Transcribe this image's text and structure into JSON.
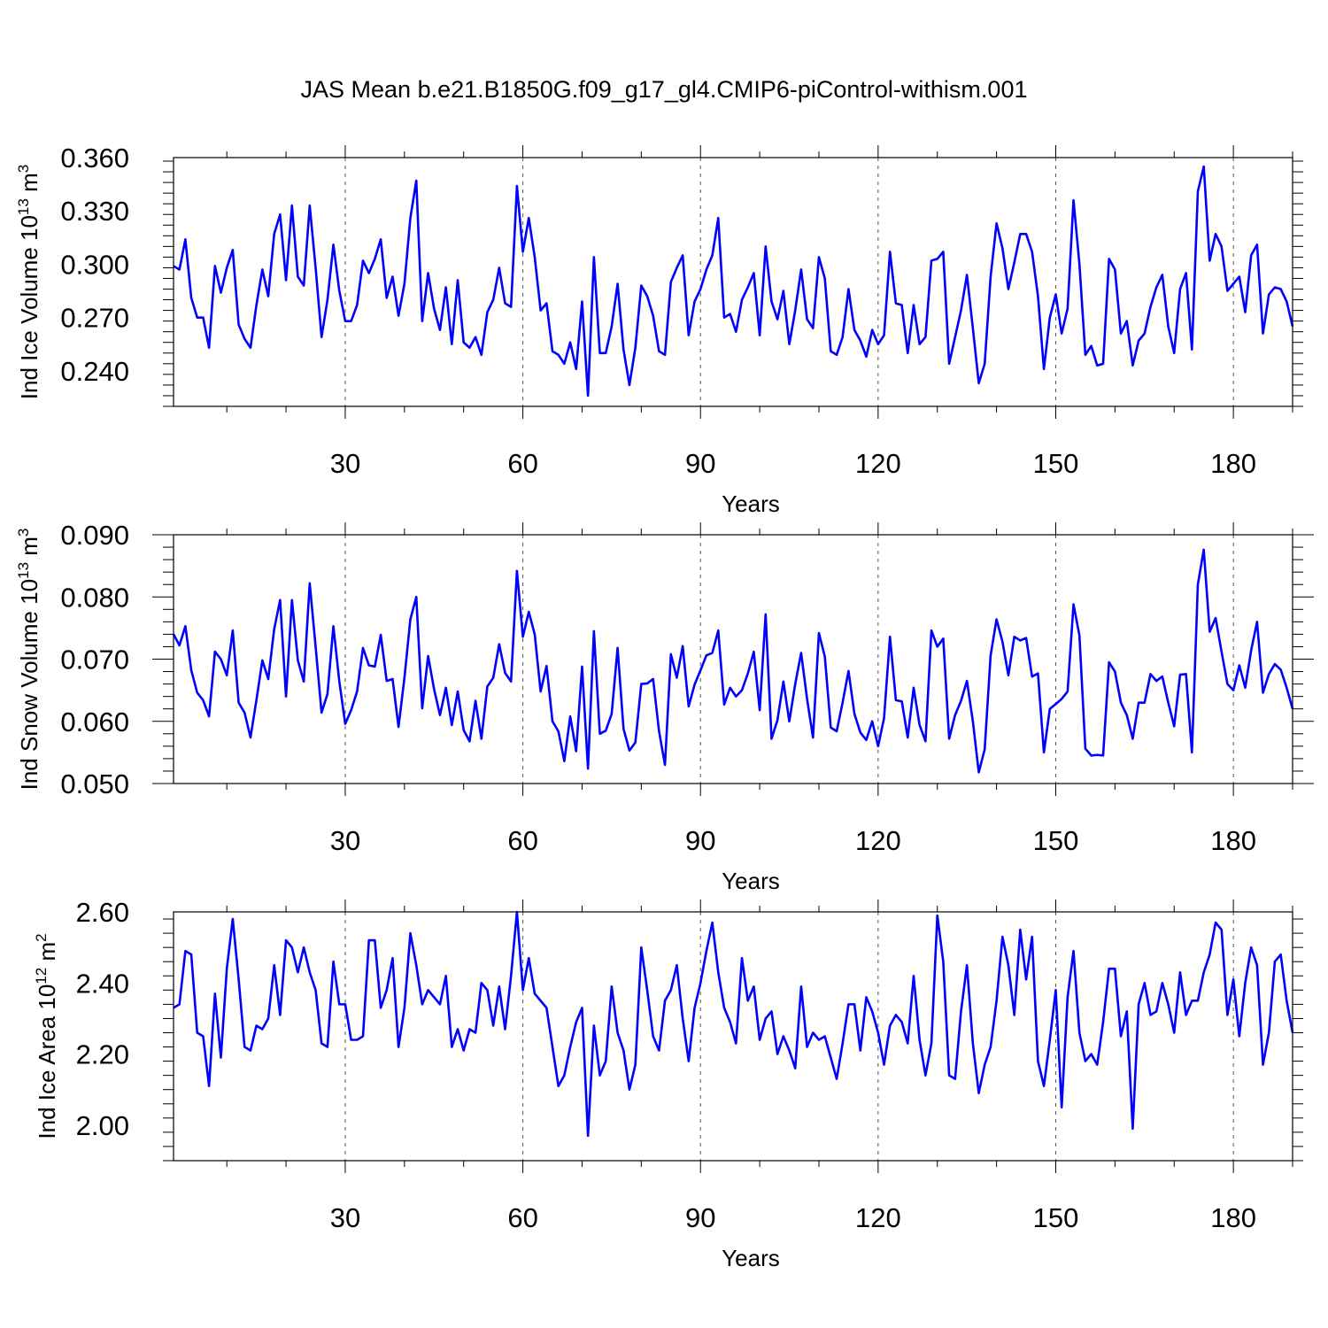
{
  "title": "JAS Mean b.e21.B1850G.f09_g17_gl4.CMIP6-piControl-withism.001",
  "colors": {
    "line": "#0000ff",
    "axis": "#000000",
    "grid": "#555555"
  },
  "chart_data": [
    {
      "type": "line",
      "ylabel": "Ind Ice Volume 10^13 m^3",
      "ylabel_main": "Ind Ice Volume 10",
      "ylabel_exp1": "13",
      "ylabel_unit": " m",
      "ylabel_exp2": "3",
      "xlabel": "Years",
      "xlim": [
        1,
        190
      ],
      "ylim": [
        0.22,
        0.36
      ],
      "xticks": [
        30,
        60,
        90,
        120,
        150,
        180
      ],
      "yticks": [
        0.24,
        0.27,
        0.3,
        0.33,
        0.36
      ],
      "ytick_labels": [
        "0.240",
        "0.270",
        "0.300",
        "0.330",
        "0.360"
      ],
      "grid": "vertical dashed at x ticks",
      "x_start": 1,
      "values": [
        0.299,
        0.297,
        0.314,
        0.281,
        0.27,
        0.27,
        0.253,
        0.299,
        0.284,
        0.298,
        0.308,
        0.266,
        0.258,
        0.253,
        0.277,
        0.297,
        0.282,
        0.317,
        0.328,
        0.291,
        0.333,
        0.293,
        0.288,
        0.333,
        0.298,
        0.259,
        0.28,
        0.311,
        0.285,
        0.268,
        0.268,
        0.277,
        0.302,
        0.295,
        0.303,
        0.314,
        0.281,
        0.293,
        0.271,
        0.289,
        0.326,
        0.347,
        0.268,
        0.295,
        0.275,
        0.263,
        0.287,
        0.255,
        0.291,
        0.256,
        0.253,
        0.259,
        0.249,
        0.273,
        0.28,
        0.298,
        0.278,
        0.276,
        0.344,
        0.307,
        0.326,
        0.304,
        0.274,
        0.278,
        0.251,
        0.249,
        0.244,
        0.256,
        0.241,
        0.279,
        0.226,
        0.304,
        0.25,
        0.25,
        0.265,
        0.289,
        0.252,
        0.232,
        0.253,
        0.288,
        0.282,
        0.271,
        0.251,
        0.249,
        0.29,
        0.298,
        0.305,
        0.26,
        0.279,
        0.286,
        0.297,
        0.305,
        0.326,
        0.27,
        0.272,
        0.262,
        0.28,
        0.287,
        0.295,
        0.26,
        0.31,
        0.279,
        0.269,
        0.285,
        0.255,
        0.274,
        0.297,
        0.269,
        0.264,
        0.304,
        0.292,
        0.251,
        0.249,
        0.259,
        0.286,
        0.263,
        0.257,
        0.248,
        0.263,
        0.255,
        0.26,
        0.307,
        0.278,
        0.277,
        0.25,
        0.277,
        0.255,
        0.259,
        0.302,
        0.303,
        0.307,
        0.244,
        0.259,
        0.274,
        0.294,
        0.264,
        0.233,
        0.244,
        0.293,
        0.323,
        0.309,
        0.286,
        0.301,
        0.317,
        0.317,
        0.307,
        0.282,
        0.241,
        0.27,
        0.283,
        0.261,
        0.275,
        0.336,
        0.3,
        0.249,
        0.254,
        0.243,
        0.244,
        0.303,
        0.297,
        0.261,
        0.268,
        0.243,
        0.257,
        0.261,
        0.276,
        0.287,
        0.294,
        0.265,
        0.25,
        0.286,
        0.295,
        0.252,
        0.341,
        0.355,
        0.302,
        0.317,
        0.31,
        0.285,
        0.289,
        0.293,
        0.273,
        0.305,
        0.311,
        0.261,
        0.283,
        0.287,
        0.286,
        0.279,
        0.265
      ]
    },
    {
      "type": "line",
      "ylabel": "Ind Snow Volume 10^13 m^3",
      "ylabel_main": "Ind Snow Volume 10",
      "ylabel_exp1": "13",
      "ylabel_unit": " m",
      "ylabel_exp2": "3",
      "xlabel": "Years",
      "xlim": [
        1,
        190
      ],
      "ylim": [
        0.05,
        0.09
      ],
      "xticks": [
        30,
        60,
        90,
        120,
        150,
        180
      ],
      "yticks": [
        0.05,
        0.06,
        0.07,
        0.08,
        0.09
      ],
      "ytick_labels": [
        "0.050",
        "0.060",
        "0.070",
        "0.080",
        "0.090"
      ],
      "grid": "vertical dashed at x ticks",
      "x_start": 1,
      "values": [
        0.074,
        0.0722,
        0.0753,
        0.0682,
        0.0646,
        0.0634,
        0.0608,
        0.0712,
        0.07,
        0.0674,
        0.0746,
        0.063,
        0.0614,
        0.0574,
        0.0634,
        0.0698,
        0.0668,
        0.0748,
        0.0795,
        0.064,
        0.0795,
        0.0698,
        0.0664,
        0.0822,
        0.072,
        0.0614,
        0.0644,
        0.0753,
        0.0664,
        0.0596,
        0.0618,
        0.0648,
        0.0718,
        0.069,
        0.0688,
        0.0739,
        0.0665,
        0.0668,
        0.0591,
        0.067,
        0.0764,
        0.08,
        0.0621,
        0.0705,
        0.0652,
        0.061,
        0.0654,
        0.0594,
        0.0648,
        0.0586,
        0.0568,
        0.0633,
        0.0572,
        0.0656,
        0.067,
        0.0724,
        0.0678,
        0.0664,
        0.0842,
        0.0736,
        0.0776,
        0.074,
        0.0648,
        0.0689,
        0.06,
        0.0584,
        0.0536,
        0.0608,
        0.0552,
        0.0688,
        0.0524,
        0.0745,
        0.058,
        0.0585,
        0.0612,
        0.0718,
        0.0588,
        0.0553,
        0.0566,
        0.066,
        0.0661,
        0.0668,
        0.0584,
        0.053,
        0.0708,
        0.067,
        0.0721,
        0.0624,
        0.0659,
        0.0682,
        0.0706,
        0.071,
        0.0746,
        0.0627,
        0.0654,
        0.064,
        0.065,
        0.0677,
        0.0712,
        0.0618,
        0.0772,
        0.0572,
        0.0602,
        0.0664,
        0.06,
        0.066,
        0.071,
        0.0636,
        0.0574,
        0.0742,
        0.0704,
        0.059,
        0.0584,
        0.063,
        0.0681,
        0.0612,
        0.0582,
        0.057,
        0.06,
        0.056,
        0.0605,
        0.0736,
        0.0634,
        0.0632,
        0.0574,
        0.0654,
        0.0594,
        0.0568,
        0.0746,
        0.072,
        0.0733,
        0.0572,
        0.061,
        0.0633,
        0.0665,
        0.06,
        0.0518,
        0.0555,
        0.0706,
        0.0764,
        0.0728,
        0.0674,
        0.0736,
        0.073,
        0.0734,
        0.0672,
        0.0677,
        0.055,
        0.062,
        0.0628,
        0.0636,
        0.0648,
        0.0788,
        0.0738,
        0.0556,
        0.0545,
        0.0546,
        0.0545,
        0.0695,
        0.068,
        0.063,
        0.061,
        0.0572,
        0.063,
        0.063,
        0.0676,
        0.0665,
        0.0672,
        0.063,
        0.0592,
        0.0675,
        0.0676,
        0.055,
        0.082,
        0.0876,
        0.0744,
        0.0766,
        0.0712,
        0.066,
        0.065,
        0.069,
        0.0654,
        0.0714,
        0.076,
        0.0646,
        0.0676,
        0.0692,
        0.0683,
        0.0654,
        0.062
      ]
    },
    {
      "type": "line",
      "ylabel": "Ind Ice Area 10^12 m^2",
      "ylabel_main": "Ind Ice Area 10",
      "ylabel_exp1": "12",
      "ylabel_unit": " m",
      "ylabel_exp2": "2",
      "xlabel": "Years",
      "xlim": [
        1,
        190
      ],
      "ylim": [
        1.9,
        2.6
      ],
      "xticks": [
        30,
        60,
        90,
        120,
        150,
        180
      ],
      "yticks": [
        2.0,
        2.2,
        2.4,
        2.6
      ],
      "ytick_labels": [
        "2.00",
        "2.20",
        "2.40",
        "2.60"
      ],
      "grid": "vertical dashed at x ticks",
      "x_start": 1,
      "values": [
        2.33,
        2.34,
        2.49,
        2.48,
        2.26,
        2.25,
        2.11,
        2.37,
        2.19,
        2.44,
        2.58,
        2.41,
        2.22,
        2.21,
        2.28,
        2.27,
        2.3,
        2.45,
        2.31,
        2.52,
        2.5,
        2.43,
        2.5,
        2.43,
        2.38,
        2.23,
        2.22,
        2.46,
        2.34,
        2.34,
        2.24,
        2.24,
        2.25,
        2.52,
        2.52,
        2.33,
        2.38,
        2.47,
        2.22,
        2.33,
        2.54,
        2.45,
        2.34,
        2.38,
        2.36,
        2.34,
        2.42,
        2.22,
        2.27,
        2.21,
        2.27,
        2.26,
        2.4,
        2.38,
        2.28,
        2.39,
        2.27,
        2.42,
        2.6,
        2.38,
        2.47,
        2.37,
        2.35,
        2.33,
        2.22,
        2.11,
        2.14,
        2.22,
        2.29,
        2.33,
        1.97,
        2.28,
        2.14,
        2.18,
        2.39,
        2.26,
        2.21,
        2.1,
        2.17,
        2.5,
        2.38,
        2.25,
        2.21,
        2.35,
        2.38,
        2.45,
        2.3,
        2.18,
        2.33,
        2.4,
        2.49,
        2.57,
        2.43,
        2.33,
        2.29,
        2.23,
        2.47,
        2.35,
        2.39,
        2.24,
        2.3,
        2.32,
        2.2,
        2.25,
        2.21,
        2.16,
        2.39,
        2.22,
        2.26,
        2.24,
        2.25,
        2.19,
        2.13,
        2.23,
        2.34,
        2.34,
        2.21,
        2.36,
        2.32,
        2.26,
        2.17,
        2.28,
        2.31,
        2.29,
        2.23,
        2.42,
        2.24,
        2.14,
        2.23,
        2.59,
        2.46,
        2.14,
        2.13,
        2.32,
        2.45,
        2.23,
        2.09,
        2.17,
        2.22,
        2.35,
        2.53,
        2.45,
        2.31,
        2.55,
        2.41,
        2.53,
        2.18,
        2.11,
        2.24,
        2.38,
        2.05,
        2.36,
        2.49,
        2.26,
        2.18,
        2.2,
        2.17,
        2.29,
        2.44,
        2.44,
        2.25,
        2.32,
        1.99,
        2.34,
        2.4,
        2.31,
        2.32,
        2.4,
        2.34,
        2.26,
        2.43,
        2.31,
        2.35,
        2.35,
        2.43,
        2.48,
        2.57,
        2.55,
        2.31,
        2.41,
        2.25,
        2.4,
        2.5,
        2.45,
        2.17,
        2.26,
        2.46,
        2.48,
        2.35,
        2.26
      ]
    }
  ]
}
